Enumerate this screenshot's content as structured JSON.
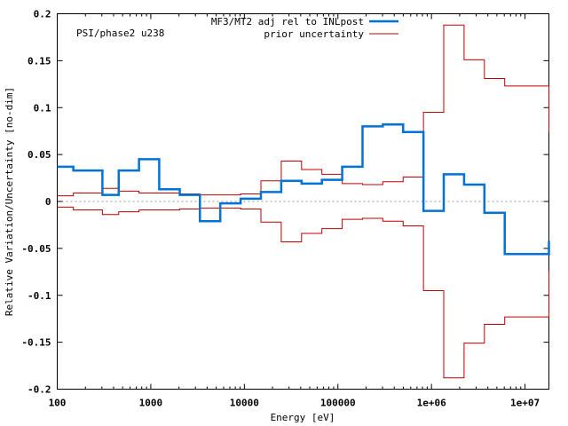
{
  "chart_data": {
    "type": "line",
    "title": "",
    "annotation": "PSI/phase2 u238",
    "xlabel": "Energy [eV]",
    "ylabel": "Relative Variation/Uncertainty [no-dim]",
    "xscale": "log",
    "xlim": [
      100,
      18000000
    ],
    "ylim": [
      -0.2,
      0.2
    ],
    "grid": false,
    "legend_position": "top-right",
    "x_ticks": [
      {
        "value": 100,
        "label": "100"
      },
      {
        "value": 1000,
        "label": "1000"
      },
      {
        "value": 10000,
        "label": "10000"
      },
      {
        "value": 100000,
        "label": "100000"
      },
      {
        "value": 1000000,
        "label": "1e+06"
      },
      {
        "value": 10000000,
        "label": "1e+07"
      }
    ],
    "y_ticks": [
      {
        "value": -0.2,
        "label": "-0.2"
      },
      {
        "value": -0.15,
        "label": "-0.15"
      },
      {
        "value": -0.1,
        "label": "-0.1"
      },
      {
        "value": -0.05,
        "label": "-0.05"
      },
      {
        "value": 0,
        "label": "0"
      },
      {
        "value": 0.05,
        "label": "0.05"
      },
      {
        "value": 0.1,
        "label": "0.1"
      },
      {
        "value": 0.15,
        "label": "0.15"
      },
      {
        "value": 0.2,
        "label": "0.2"
      }
    ],
    "group_boundaries_eV": [
      100,
      148.7,
      304,
      454,
      748,
      1230,
      2040,
      3350,
      5530,
      9120,
      15030,
      24790,
      40870,
      67380,
      111100,
      183200,
      302000,
      497900,
      820900,
      1353000,
      2231000,
      3679000,
      6065000,
      18000000
    ],
    "series": [
      {
        "name": "MF3/MT2 adj rel to INLpost",
        "color": "#0072d8",
        "style": "step",
        "values": [
          0.037,
          0.033,
          0.007,
          0.033,
          0.045,
          0.013,
          0.007,
          -0.021,
          -0.002,
          0.003,
          0.01,
          0.022,
          0.019,
          0.023,
          0.037,
          0.08,
          0.082,
          0.074,
          -0.01,
          0.029,
          0.018,
          -0.012,
          -0.056,
          -0.042
        ]
      },
      {
        "name": "prior uncertainty",
        "color": "#c00000",
        "style": "step-symmetric",
        "values": [
          0.006,
          0.009,
          0.014,
          0.011,
          0.009,
          0.009,
          0.008,
          0.007,
          0.007,
          0.008,
          0.022,
          0.043,
          0.034,
          0.029,
          0.019,
          0.018,
          0.021,
          0.026,
          0.095,
          0.188,
          0.151,
          0.131,
          0.123,
          0.074
        ]
      }
    ],
    "zero_line": {
      "value": 0,
      "style": "dotted",
      "color": "#999999"
    }
  }
}
